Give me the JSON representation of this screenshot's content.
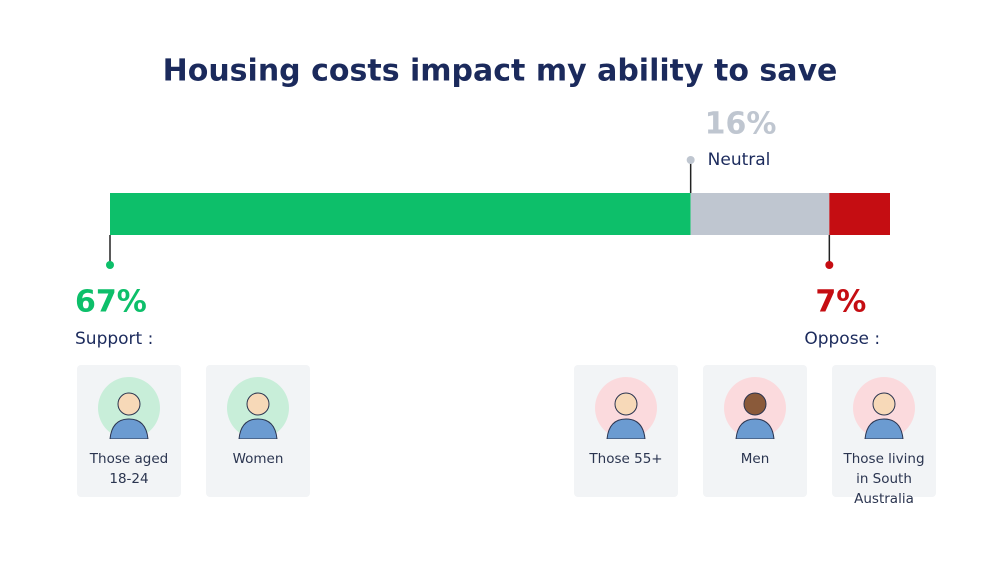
{
  "chart_data": {
    "type": "stacked-bar",
    "title": "Housing costs impact my ability to save",
    "series": [
      {
        "name": "Support :",
        "color": "#0dbf6a",
        "values": [
          67
        ],
        "value_labels": [
          "67%"
        ]
      },
      {
        "name": "Neutral",
        "color": "#bfc6d0",
        "values": [
          16
        ],
        "value_labels": [
          "16%"
        ]
      },
      {
        "name": "Oppose :",
        "color": "#c50d12",
        "values": [
          7
        ],
        "value_labels": [
          "7%"
        ]
      }
    ]
  },
  "groups": {
    "support": [
      "Those aged 18-24",
      "Women"
    ],
    "oppose": [
      "Those 55+",
      "Men",
      "Those living in South Australia"
    ]
  }
}
